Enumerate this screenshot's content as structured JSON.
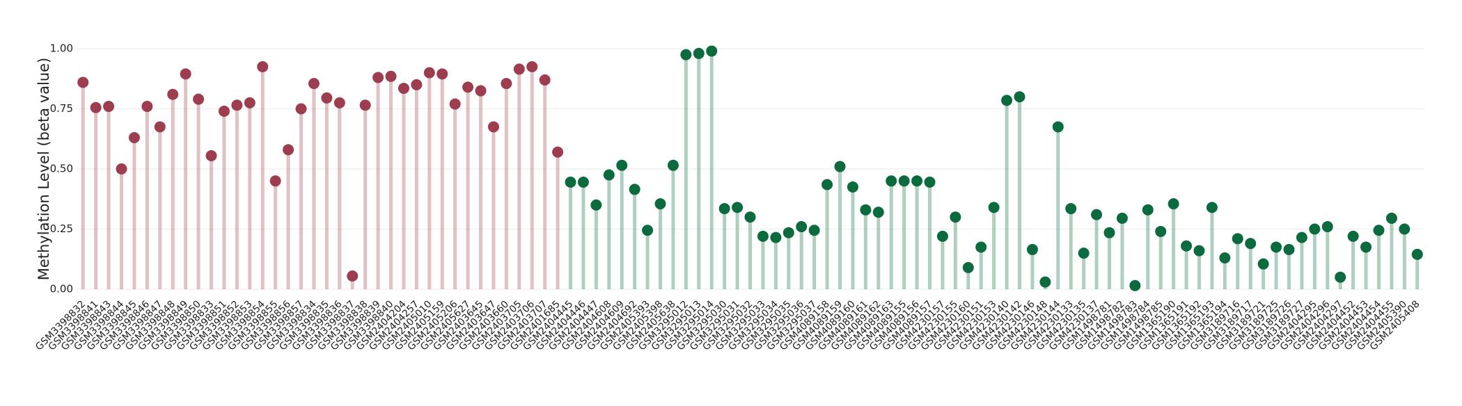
{
  "chart_data": {
    "type": "lollipop",
    "y_label": "Methylation Level (beta value)",
    "categories": [
      "GSM3398832",
      "GSM3398841",
      "GSM3398843",
      "GSM3398844",
      "GSM3398845",
      "GSM3398846",
      "GSM3398847",
      "GSM3398848",
      "GSM3398849",
      "GSM3398850",
      "GSM3398833",
      "GSM3398851",
      "GSM3398852",
      "GSM3398853",
      "GSM3398854",
      "GSM3398855",
      "GSM3398856",
      "GSM3398857",
      "GSM3398834",
      "GSM3398835",
      "GSM3398836",
      "GSM3398837",
      "GSM3398838",
      "GSM3398839",
      "GSM3398840",
      "GSM2404204",
      "GSM2404257",
      "GSM2405010",
      "GSM2405159",
      "GSM2405206",
      "GSM2405627",
      "GSM2403645",
      "GSM2403647",
      "GSM2403660",
      "GSM2403705",
      "GSM2403706",
      "GSM2403707",
      "GSM2401685",
      "GSM2404445",
      "GSM2404446",
      "GSM2404447",
      "GSM2404608",
      "GSM2404609",
      "GSM2404692",
      "GSM2405393",
      "GSM2405398",
      "GSM2405638",
      "GSM3295012",
      "GSM3295013",
      "GSM3295014",
      "GSM3295030",
      "GSM3295031",
      "GSM3295032",
      "GSM3295033",
      "GSM3295034",
      "GSM3295035",
      "GSM3295036",
      "GSM3295037",
      "GSM4089158",
      "GSM4089159",
      "GSM4089160",
      "GSM4089161",
      "GSM4089162",
      "GSM4089163",
      "GSM4089155",
      "GSM4089156",
      "GSM4089157",
      "GSM4230157",
      "GSM4230155",
      "GSM4230160",
      "GSM4230151",
      "GSM4230153",
      "GSM4230140",
      "GSM4230142",
      "GSM4230146",
      "GSM4230148",
      "GSM4230144",
      "GSM4230133",
      "GSM4230135",
      "GSM4230137",
      "GSM1498781",
      "GSM1498782",
      "GSM1498783",
      "GSM1498784",
      "GSM1498785",
      "GSM1365190",
      "GSM1365191",
      "GSM1365192",
      "GSM1365193",
      "GSM1365194",
      "GSM3189716",
      "GSM3189717",
      "GSM3189721",
      "GSM3189725",
      "GSM3189726",
      "GSM3189727",
      "GSM2404295",
      "GSM2404296",
      "GSM2404297",
      "GSM2404452",
      "GSM2404453",
      "GSM2404454",
      "GSM2404455",
      "GSM2405390",
      "GSM2405408"
    ],
    "values": [
      0.86,
      0.755,
      0.76,
      0.5,
      0.63,
      0.76,
      0.675,
      0.81,
      0.895,
      0.79,
      0.555,
      0.74,
      0.765,
      0.775,
      0.925,
      0.45,
      0.58,
      0.75,
      0.855,
      0.795,
      0.775,
      0.055,
      0.765,
      0.88,
      0.885,
      0.835,
      0.85,
      0.9,
      0.895,
      0.77,
      0.84,
      0.825,
      0.675,
      0.855,
      0.915,
      0.925,
      0.87,
      0.57,
      0.445,
      0.445,
      0.35,
      0.475,
      0.515,
      0.415,
      0.245,
      0.355,
      0.515,
      0.975,
      0.98,
      0.99,
      0.335,
      0.34,
      0.3,
      0.22,
      0.215,
      0.235,
      0.26,
      0.245,
      0.435,
      0.51,
      0.425,
      0.33,
      0.32,
      0.45,
      0.45,
      0.45,
      0.445,
      0.22,
      0.3,
      0.09,
      0.175,
      0.34,
      0.785,
      0.8,
      0.165,
      0.03,
      0.675,
      0.335,
      0.15,
      0.31,
      0.235,
      0.295,
      0.015,
      0.33,
      0.24,
      0.355,
      0.18,
      0.16,
      0.34,
      0.13,
      0.21,
      0.19,
      0.105,
      0.175,
      0.165,
      0.215,
      0.25,
      0.26,
      0.05,
      0.22,
      0.175,
      0.245,
      0.295,
      0.25,
      0.145
    ],
    "colors": [
      "#9e3d4f",
      "#9e3d4f",
      "#9e3d4f",
      "#9e3d4f",
      "#9e3d4f",
      "#9e3d4f",
      "#9e3d4f",
      "#9e3d4f",
      "#9e3d4f",
      "#9e3d4f",
      "#9e3d4f",
      "#9e3d4f",
      "#9e3d4f",
      "#9e3d4f",
      "#9e3d4f",
      "#9e3d4f",
      "#9e3d4f",
      "#9e3d4f",
      "#9e3d4f",
      "#9e3d4f",
      "#9e3d4f",
      "#9e3d4f",
      "#9e3d4f",
      "#9e3d4f",
      "#9e3d4f",
      "#9e3d4f",
      "#9e3d4f",
      "#9e3d4f",
      "#9e3d4f",
      "#9e3d4f",
      "#9e3d4f",
      "#9e3d4f",
      "#9e3d4f",
      "#9e3d4f",
      "#9e3d4f",
      "#9e3d4f",
      "#9e3d4f",
      "#9e3d4f",
      "#0b6b3f",
      "#0b6b3f",
      "#0b6b3f",
      "#0b6b3f",
      "#0b6b3f",
      "#0b6b3f",
      "#0b6b3f",
      "#0b6b3f",
      "#0b6b3f",
      "#0b6b3f",
      "#0b6b3f",
      "#0b6b3f",
      "#0b6b3f",
      "#0b6b3f",
      "#0b6b3f",
      "#0b6b3f",
      "#0b6b3f",
      "#0b6b3f",
      "#0b6b3f",
      "#0b6b3f",
      "#0b6b3f",
      "#0b6b3f",
      "#0b6b3f",
      "#0b6b3f",
      "#0b6b3f",
      "#0b6b3f",
      "#0b6b3f",
      "#0b6b3f",
      "#0b6b3f",
      "#0b6b3f",
      "#0b6b3f",
      "#0b6b3f",
      "#0b6b3f",
      "#0b6b3f",
      "#0b6b3f",
      "#0b6b3f",
      "#0b6b3f",
      "#0b6b3f",
      "#0b6b3f",
      "#0b6b3f",
      "#0b6b3f",
      "#0b6b3f",
      "#0b6b3f",
      "#0b6b3f",
      "#0b6b3f",
      "#0b6b3f",
      "#0b6b3f",
      "#0b6b3f",
      "#0b6b3f",
      "#0b6b3f",
      "#0b6b3f",
      "#0b6b3f",
      "#0b6b3f",
      "#0b6b3f",
      "#0b6b3f",
      "#0b6b3f",
      "#0b6b3f",
      "#0b6b3f",
      "#0b6b3f",
      "#0b6b3f",
      "#0b6b3f",
      "#0b6b3f",
      "#0b6b3f",
      "#0b6b3f",
      "#0b6b3f",
      "#0b6b3f",
      "#0b6b3f"
    ],
    "ylim": [
      0,
      1
    ],
    "yticks": [
      {
        "value": 0,
        "label": "0.00"
      },
      {
        "value": 0.25,
        "label": "0.25"
      },
      {
        "value": 0.5,
        "label": "0.50"
      },
      {
        "value": 0.75,
        "label": "0.75"
      },
      {
        "value": 1,
        "label": "1.00"
      }
    ],
    "grid": true
  }
}
